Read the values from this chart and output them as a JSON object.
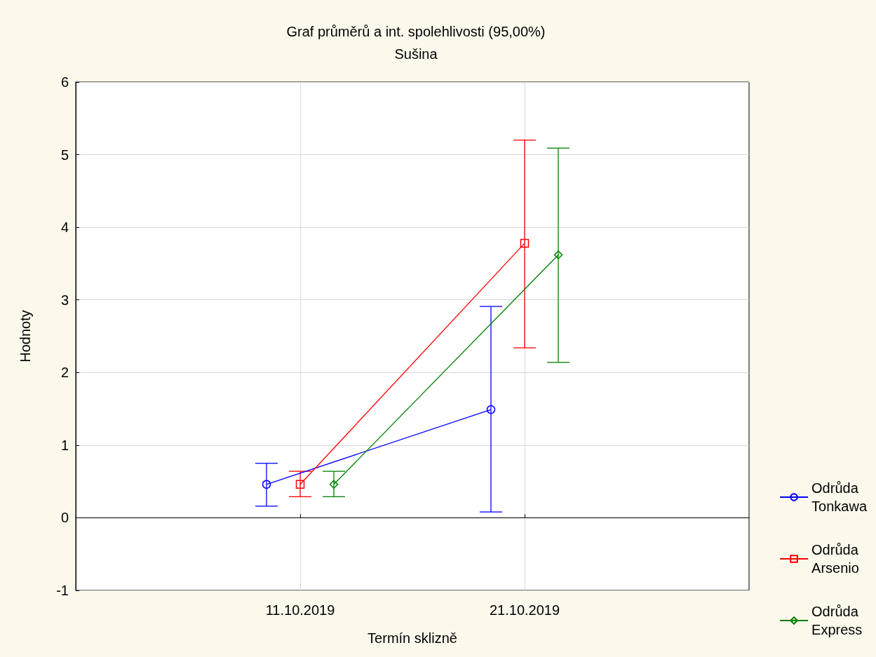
{
  "chart_data": {
    "type": "line",
    "title": "Graf průměrů a int. spolehlivosti (95,00%)",
    "subtitle": "Sušina",
    "xlabel": "Termín sklizně",
    "ylabel": "Hodnoty",
    "categories": [
      "11.10.2019",
      "21.10.2019"
    ],
    "series": [
      {
        "name": "Odrůda Tonkawa",
        "color": "#0000ff",
        "marker": "circle",
        "values": [
          0.46,
          1.49
        ],
        "errors": [
          [
            0.16,
            0.75
          ],
          [
            0.08,
            2.91
          ]
        ]
      },
      {
        "name": "Odrůda Arsenio",
        "color": "#ff0000",
        "marker": "square",
        "values": [
          0.46,
          3.78
        ],
        "errors": [
          [
            0.29,
            0.64
          ],
          [
            2.34,
            5.2
          ]
        ]
      },
      {
        "name": "Odrůda Express",
        "color": "#008000",
        "marker": "diamond",
        "values": [
          0.46,
          3.62
        ],
        "errors": [
          [
            0.29,
            0.64
          ],
          [
            2.14,
            5.09
          ]
        ]
      }
    ],
    "ylim": [
      -1,
      6
    ],
    "yticks": [
      -1,
      0,
      1,
      2,
      3,
      4,
      5,
      6
    ],
    "grid": true,
    "legend": "bottom right"
  }
}
